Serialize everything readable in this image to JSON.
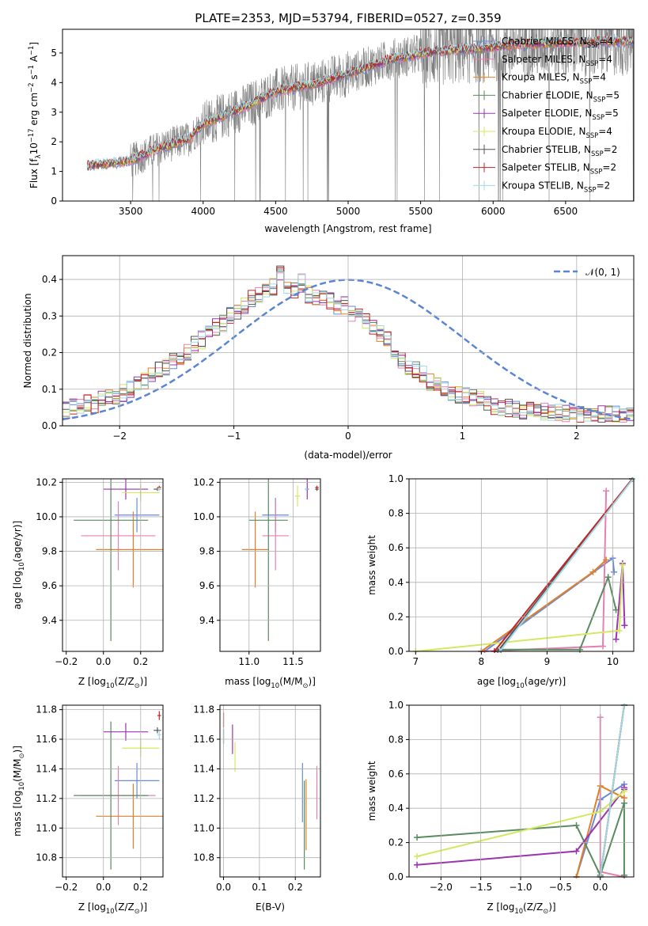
{
  "title": "PLATE=2353, MJD=53794, FIBERID=0527, z=0.359",
  "series": [
    {
      "name": "Chabrier MILES, N$_{SSP}$=4",
      "label": "Chabrier MILES, N",
      "sub": "SSP",
      "suffix": "=4",
      "color": "#6b8ad6"
    },
    {
      "name": "Salpeter MILES, N$_{SSP}$=4",
      "label": "Salpeter MILES, N",
      "sub": "SSP",
      "suffix": "=4",
      "color": "#e680b3"
    },
    {
      "name": "Kroupa MILES, N$_{SSP}$=4",
      "label": "Kroupa MILES, N",
      "sub": "SSP",
      "suffix": "=4",
      "color": "#e0802a"
    },
    {
      "name": "Chabrier ELODIE, N$_{SSP}$=5",
      "label": "Chabrier ELODIE, N",
      "sub": "SSP",
      "suffix": "=5",
      "color": "#5a8a5f"
    },
    {
      "name": "Salpeter ELODIE, N$_{SSP}$=5",
      "label": "Salpeter ELODIE, N",
      "sub": "SSP",
      "suffix": "=5",
      "color": "#9b34b0"
    },
    {
      "name": "Kroupa ELODIE, N$_{SSP}$=4",
      "label": "Kroupa ELODIE, N",
      "sub": "SSP",
      "suffix": "=4",
      "color": "#d4e861"
    },
    {
      "name": "Chabrier STELIB, N$_{SSP}$=2",
      "label": "Chabrier STELIB, N",
      "sub": "SSP",
      "suffix": "=2",
      "color": "#555555"
    },
    {
      "name": "Salpeter STELIB, N$_{SSP}$=2",
      "label": "Salpeter STELIB, N",
      "sub": "SSP",
      "suffix": "=2",
      "color": "#c42424"
    },
    {
      "name": "Kroupa STELIB, N$_{SSP}$=2",
      "label": "Kroupa STELIB, N",
      "sub": "SSP",
      "suffix": "=2",
      "color": "#9fd9e6"
    }
  ],
  "panels": {
    "spectrum": {
      "xlabel": "wavelength [Angstrom, rest frame]",
      "ylabel": "Flux [f",
      "ylabel_sub": "λ",
      "ylabel_rest": "10",
      "ylabel_sup": "−17",
      "ylabel_units": " erg cm",
      "ylabel_sup2": "−2",
      "ylabel_units2": " s",
      "ylabel_sup3": "−1",
      "ylabel_units3": " A",
      "ylabel_sup4": "−1",
      "ylabel_end": "]",
      "xticks": [
        "3500",
        "4000",
        "4500",
        "5000",
        "5500",
        "6000",
        "6500"
      ],
      "yticks": [
        "0",
        "1",
        "2",
        "3",
        "4",
        "5"
      ]
    },
    "residuals": {
      "xlabel": "(data-model)/error",
      "ylabel": "Normed distribution",
      "legend": "𝒩(0, 1)",
      "xticks": [
        "−2",
        "−1",
        "0",
        "1",
        "2"
      ],
      "yticks": [
        "0.0",
        "0.1",
        "0.2",
        "0.3",
        "0.4"
      ]
    },
    "z_age": {
      "xlabel": "Z [log",
      "xsub": "10",
      "xrest": "(Z/Z",
      "xsub2": "⊙",
      "xend": ")]",
      "ylabel": "age  [log",
      "ysub": "10",
      "yrest": "(age/yr)]",
      "xticks": [
        "−0.2",
        "0.0",
        "0.2"
      ],
      "yticks": [
        "9.4",
        "9.6",
        "9.8",
        "10.0",
        "10.2"
      ]
    },
    "mass_age": {
      "xlabel": "mass [log",
      "xsub": "10",
      "xrest": "(M/M",
      "xsub2": "⊙",
      "xend": ")]",
      "xticks": [
        "11.0",
        "11.5"
      ],
      "yticks": [
        "9.4",
        "9.6",
        "9.8",
        "10.0",
        "10.2"
      ]
    },
    "age_weight": {
      "xlabel": "age  [log",
      "xsub": "10",
      "xrest": "(age/yr)]",
      "ylabel": "mass weight",
      "xticks": [
        "7",
        "8",
        "9",
        "10"
      ],
      "yticks": [
        "0.0",
        "0.2",
        "0.4",
        "0.6",
        "0.8",
        "1.0"
      ]
    },
    "z_mass": {
      "xlabel": "Z [log",
      "xsub": "10",
      "xrest": "(Z/Z",
      "xsub2": "⊙",
      "xend": ")]",
      "ylabel": "mass [log",
      "ysub": "10",
      "yrest": "(M/M",
      "ysub2": "⊙",
      "yend": ")]",
      "xticks": [
        "−0.2",
        "0.0",
        "0.2"
      ],
      "yticks": [
        "10.8",
        "11.0",
        "11.2",
        "11.4",
        "11.6",
        "11.8"
      ]
    },
    "ebv_mass": {
      "xlabel": "E(B-V)",
      "xticks": [
        "0.0",
        "0.1",
        "0.2"
      ],
      "yticks": [
        "10.8",
        "11.0",
        "11.2",
        "11.4",
        "11.6",
        "11.8"
      ]
    },
    "z_weight": {
      "xlabel": "Z [log",
      "xsub": "10",
      "xrest": "(Z/Z",
      "xsub2": "⊙",
      "xend": ")]",
      "ylabel": "mass weight",
      "xticks": [
        "−2.0",
        "−1.5",
        "−1.0",
        "−0.5",
        "0.0"
      ],
      "yticks": [
        "0.0",
        "0.2",
        "0.4",
        "0.6",
        "0.8",
        "1.0"
      ]
    }
  },
  "chart_data": [
    {
      "type": "line",
      "panel": "spectrum",
      "xlim": [
        3030,
        6970
      ],
      "ylim": [
        0,
        5.8
      ],
      "data_start": 3200,
      "data_end": 6970,
      "approx_continuum": [
        [
          3200,
          1.2
        ],
        [
          3500,
          1.35
        ],
        [
          3700,
          1.8
        ],
        [
          3900,
          2.1
        ],
        [
          4000,
          2.6
        ],
        [
          4300,
          3.2
        ],
        [
          4500,
          3.7
        ],
        [
          4800,
          4.0
        ],
        [
          5000,
          4.3
        ],
        [
          5300,
          4.8
        ],
        [
          5600,
          5.05
        ],
        [
          5900,
          5.15
        ],
        [
          6200,
          5.3
        ],
        [
          6500,
          5.35
        ],
        [
          6970,
          5.4
        ]
      ],
      "note_series": "9 model fits + grey data"
    },
    {
      "type": "bar",
      "panel": "residuals",
      "xlim": [
        -2.5,
        2.5
      ],
      "ylim": [
        0,
        0.465
      ],
      "bin_width": 0.1,
      "bin_start": -2.5,
      "values": [
        0.045,
        0.05,
        0.055,
        0.065,
        0.06,
        0.07,
        0.075,
        0.08,
        0.09,
        0.1,
        0.115,
        0.125,
        0.14,
        0.15,
        0.16,
        0.18,
        0.19,
        0.2,
        0.22,
        0.235,
        0.25,
        0.27,
        0.28,
        0.3,
        0.31,
        0.33,
        0.35,
        0.36,
        0.37,
        0.38,
        0.42,
        0.38,
        0.37,
        0.39,
        0.36,
        0.355,
        0.35,
        0.34,
        0.33,
        0.33,
        0.31,
        0.3,
        0.29,
        0.27,
        0.25,
        0.24,
        0.2,
        0.18,
        0.16,
        0.15,
        0.14,
        0.12,
        0.11,
        0.1,
        0.09,
        0.085,
        0.08,
        0.075,
        0.07,
        0.06,
        0.055,
        0.05,
        0.048,
        0.045,
        0.04,
        0.04,
        0.04,
        0.038,
        0.036,
        0.035,
        0.035,
        0.035,
        0.033,
        0.032,
        0.03,
        0.03,
        0.03,
        0.03,
        0.03,
        0.03
      ],
      "gaussian": {
        "mu": 0,
        "sigma": 1
      }
    },
    {
      "type": "scatter",
      "panel": "z_age",
      "xlim": [
        -0.22,
        0.32
      ],
      "ylim": [
        9.22,
        10.22
      ],
      "points": [
        {
          "s": 0,
          "x": 0.18,
          "y": 10.01,
          "xerr": 0.12,
          "yerr": 0.1
        },
        {
          "s": 1,
          "x": 0.08,
          "y": 9.89,
          "xerr": 0.2,
          "yerr": 0.2
        },
        {
          "s": 2,
          "x": 0.16,
          "y": 9.81,
          "xerr": 0.2,
          "yerr": 0.22
        },
        {
          "s": 3,
          "x": 0.04,
          "y": 9.98,
          "xerr": 0.2,
          "yerr": 0.7
        },
        {
          "s": 4,
          "x": 0.12,
          "y": 10.16,
          "xerr": 0.12,
          "yerr": 0.06
        },
        {
          "s": 5,
          "x": 0.2,
          "y": 10.14,
          "xerr": 0.1,
          "yerr": 0.05
        },
        {
          "s": 6,
          "x": 0.29,
          "y": 10.16,
          "xerr": 0.02,
          "yerr": 0.01
        },
        {
          "s": 7,
          "x": 0.3,
          "y": 10.17,
          "xerr": 0.01,
          "yerr": 0.01
        },
        {
          "s": 8,
          "x": 0.3,
          "y": 10.16,
          "xerr": 0.01,
          "yerr": 0.01
        }
      ]
    },
    {
      "type": "scatter",
      "panel": "mass_age",
      "xlim": [
        10.67,
        11.81
      ],
      "ylim": [
        9.22,
        10.22
      ],
      "points": [
        {
          "s": 0,
          "x": 11.3,
          "y": 10.01,
          "xerr": 0.15,
          "yerr": 0.1
        },
        {
          "s": 1,
          "x": 11.3,
          "y": 9.89,
          "xerr": 0.15,
          "yerr": 0.2
        },
        {
          "s": 2,
          "x": 11.07,
          "y": 9.81,
          "xerr": 0.15,
          "yerr": 0.22
        },
        {
          "s": 3,
          "x": 11.22,
          "y": 9.98,
          "xerr": 0.22,
          "yerr": 0.7
        },
        {
          "s": 4,
          "x": 11.66,
          "y": 10.16,
          "xerr": 0.02,
          "yerr": 0.06
        },
        {
          "s": 5,
          "x": 11.55,
          "y": 10.12,
          "xerr": 0.03,
          "yerr": 0.06
        },
        {
          "s": 6,
          "x": 11.77,
          "y": 10.16,
          "xerr": 0.02,
          "yerr": 0.01
        },
        {
          "s": 7,
          "x": 11.77,
          "y": 10.17,
          "xerr": 0.02,
          "yerr": 0.01
        },
        {
          "s": 8,
          "x": 11.65,
          "y": 10.16,
          "xerr": 0.02,
          "yerr": 0.01
        }
      ]
    },
    {
      "type": "line",
      "panel": "age_weight",
      "xlim": [
        6.9,
        10.32
      ],
      "ylim": [
        0,
        1
      ],
      "series": [
        {
          "s": 0,
          "x": [
            8.05,
            10.0,
            10.02
          ],
          "y": [
            0.0,
            0.54,
            0.46
          ]
        },
        {
          "s": 1,
          "x": [
            8.0,
            9.85,
            9.9
          ],
          "y": [
            0.0,
            0.03,
            0.93
          ]
        },
        {
          "s": 2,
          "x": [
            8.0,
            9.7,
            9.9
          ],
          "y": [
            0.0,
            0.46,
            0.53
          ]
        },
        {
          "s": 3,
          "x": [
            8.3,
            9.5,
            9.93,
            10.05
          ],
          "y": [
            0.01,
            0.01,
            0.43,
            0.24
          ]
        },
        {
          "s": 4,
          "x": [
            10.05,
            10.15,
            10.18
          ],
          "y": [
            0.07,
            0.51,
            0.15
          ]
        },
        {
          "s": 5,
          "x": [
            7.0,
            10.1,
            10.15
          ],
          "y": [
            0.0,
            0.12,
            0.5
          ]
        },
        {
          "s": 6,
          "x": [
            8.25,
            10.3
          ],
          "y": [
            0.0,
            1.0
          ]
        },
        {
          "s": 7,
          "x": [
            8.2,
            10.3
          ],
          "y": [
            0.0,
            1.0
          ]
        },
        {
          "s": 8,
          "x": [
            8.28,
            10.31
          ],
          "y": [
            0.0,
            1.0
          ]
        }
      ]
    },
    {
      "type": "scatter",
      "panel": "z_mass",
      "xlim": [
        -0.22,
        0.32
      ],
      "ylim": [
        10.67,
        11.83
      ],
      "points": [
        {
          "s": 0,
          "x": 0.18,
          "y": 11.32,
          "xerr": 0.12,
          "yerr": 0.12
        },
        {
          "s": 1,
          "x": 0.08,
          "y": 11.22,
          "xerr": 0.2,
          "yerr": 0.2
        },
        {
          "s": 2,
          "x": 0.16,
          "y": 11.08,
          "xerr": 0.2,
          "yerr": 0.22
        },
        {
          "s": 3,
          "x": 0.04,
          "y": 11.22,
          "xerr": 0.2,
          "yerr": 0.5
        },
        {
          "s": 4,
          "x": 0.12,
          "y": 11.65,
          "xerr": 0.12,
          "yerr": 0.06
        },
        {
          "s": 5,
          "x": 0.2,
          "y": 11.54,
          "xerr": 0.1,
          "yerr": 0.06
        },
        {
          "s": 6,
          "x": 0.29,
          "y": 11.66,
          "xerr": 0.02,
          "yerr": 0.02
        },
        {
          "s": 7,
          "x": 0.3,
          "y": 11.76,
          "xerr": 0.01,
          "yerr": 0.03
        },
        {
          "s": 8,
          "x": 0.3,
          "y": 11.63,
          "xerr": 0.01,
          "yerr": 0.03
        }
      ]
    },
    {
      "type": "scatter",
      "panel": "ebv_mass",
      "xlim": [
        -0.01,
        0.27
      ],
      "ylim": [
        10.67,
        11.83
      ],
      "points": [
        {
          "s": 0,
          "x": 0.22,
          "y": 11.24,
          "xerr": 0.0,
          "yerr": 0.2
        },
        {
          "s": 1,
          "x": 0.26,
          "y": 11.24,
          "xerr": 0.0,
          "yerr": 0.18
        },
        {
          "s": 2,
          "x": 0.23,
          "y": 11.09,
          "xerr": 0.0,
          "yerr": 0.24
        },
        {
          "s": 3,
          "x": 0.225,
          "y": 11.02,
          "xerr": 0.0,
          "yerr": 0.3
        },
        {
          "s": 4,
          "x": 0.025,
          "y": 11.6,
          "xerr": 0.0,
          "yerr": 0.1
        },
        {
          "s": 5,
          "x": 0.032,
          "y": 11.48,
          "xerr": 0.0,
          "yerr": 0.1
        },
        {
          "s": 6,
          "x": 0.0,
          "y": 11.62,
          "xerr": 0.0,
          "yerr": 0.05
        },
        {
          "s": 7,
          "x": 0.0,
          "y": 11.73,
          "xerr": 0.0,
          "yerr": 0.05
        },
        {
          "s": 8,
          "x": 0.0,
          "y": 11.62,
          "xerr": 0.0,
          "yerr": 0.05
        }
      ]
    },
    {
      "type": "line",
      "panel": "z_weight",
      "xlim": [
        -2.4,
        0.42
      ],
      "ylim": [
        0,
        1
      ],
      "series": [
        {
          "s": 0,
          "x": [
            -0.3,
            0.0,
            0.3
          ],
          "y": [
            0.0,
            0.45,
            0.54
          ]
        },
        {
          "s": 1,
          "x": [
            0.0,
            0.0,
            0.3
          ],
          "y": [
            0.93,
            0.03,
            0.0
          ]
        },
        {
          "s": 2,
          "x": [
            -0.3,
            0.0,
            0.3
          ],
          "y": [
            0.0,
            0.53,
            0.46
          ]
        },
        {
          "s": 3,
          "x": [
            -2.3,
            -0.3,
            0.0,
            0.3,
            0.3
          ],
          "y": [
            0.23,
            0.3,
            0.01,
            0.43,
            0.01
          ]
        },
        {
          "s": 4,
          "x": [
            -2.3,
            -0.3,
            0.3,
            0.3
          ],
          "y": [
            0.07,
            0.15,
            0.51,
            0.52
          ]
        },
        {
          "s": 5,
          "x": [
            -2.3,
            0.0,
            0.3
          ],
          "y": [
            0.12,
            0.38,
            0.5
          ]
        },
        {
          "s": 6,
          "x": [
            0.0,
            0.3
          ],
          "y": [
            0.0,
            1.0
          ]
        },
        {
          "s": 7,
          "x": [
            0.0,
            0.3
          ],
          "y": [
            0.0,
            1.0
          ]
        },
        {
          "s": 8,
          "x": [
            0.0,
            0.3
          ],
          "y": [
            0.0,
            1.0
          ]
        }
      ]
    }
  ]
}
